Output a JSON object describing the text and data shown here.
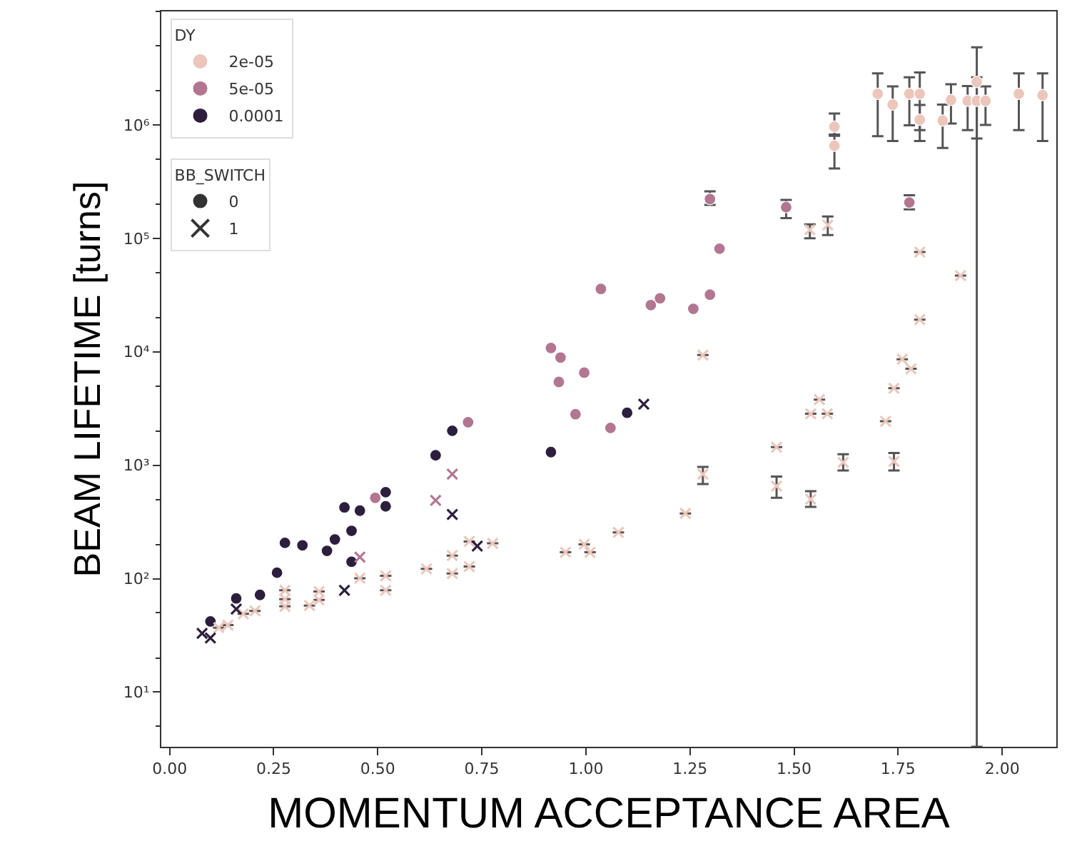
{
  "chart_data": {
    "type": "scatter",
    "xlabel": "MOMENTUM ACCEPTANCE AREA",
    "ylabel": "BEAM LIFETIME [turns]",
    "log": "y",
    "legend": "top left",
    "legend_title": [
      "DY",
      "BB_SWITCH"
    ],
    "xlim": [
      -0.02,
      2.13
    ],
    "xticks": [
      {
        "value": 0,
        "label": "0.00"
      },
      {
        "value": 0.25,
        "label": "0.25"
      },
      {
        "value": 0.5,
        "label": "0.50"
      },
      {
        "value": 0.75,
        "label": "0.75"
      },
      {
        "value": 1,
        "label": "1.00"
      },
      {
        "value": 1.25,
        "label": "1.25"
      },
      {
        "value": 1.5,
        "label": "1.50"
      },
      {
        "value": 1.75,
        "label": "1.75"
      },
      {
        "value": 2,
        "label": "2.00"
      }
    ],
    "ylim": [
      3.3,
      10000000
    ],
    "yticks": [
      {
        "value": 10,
        "label": "10¹"
      },
      {
        "value": 100,
        "label": "10²"
      },
      {
        "value": 1000,
        "label": "10³"
      },
      {
        "value": 10000,
        "label": "10⁴"
      },
      {
        "value": 100000,
        "label": "10⁵"
      },
      {
        "value": 1000000,
        "label": "10⁶"
      }
    ],
    "series": [
      {
        "name": "2e-05",
        "color": "#ecc6bb",
        "marker": "circle",
        "x": [
          1.597,
          1.597,
          1.701,
          1.737,
          1.777,
          1.802,
          1.802,
          1.857,
          1.877,
          1.917,
          1.939,
          1.939,
          1.96,
          2.04,
          2.097
        ],
        "values": [
          964000,
          655000,
          1880000,
          1510000,
          1880000,
          1880000,
          1110000,
          1090000,
          1660000,
          1630000,
          2390000,
          1630000,
          1630000,
          1880000,
          1830000
        ],
        "errors": [
          [
            820000,
            1260000
          ],
          [
            413000,
            800000
          ],
          [
            794000,
            2850000
          ],
          [
            720000,
            2180000
          ],
          [
            990000,
            2630000
          ],
          [
            720000,
            2900000
          ],
          [
            900000,
            1500000
          ],
          [
            625000,
            1510000
          ],
          [
            1030000,
            2280000
          ],
          [
            900000,
            2200000
          ],
          [
            3.3,
            4830000
          ],
          [
            757000,
            2630000
          ],
          [
            1000000,
            2180000
          ],
          [
            900000,
            2850000
          ],
          [
            720000,
            2850000
          ]
        ]
      },
      {
        "name": "5e-05",
        "color": "#b27691",
        "marker": "circle",
        "x": [
          0.494,
          0.717,
          0.975,
          1.059,
          1.036,
          0.916,
          0.939,
          0.935,
          0.996,
          1.156,
          1.178,
          1.258,
          1.298,
          1.321,
          1.298,
          1.481,
          1.777
        ],
        "values": [
          516,
          2393,
          2818,
          2133,
          35800,
          10800,
          8900,
          5420,
          6550,
          25800,
          29600,
          23900,
          31900,
          81000,
          222000,
          188000,
          207000
        ],
        "errors": [
          null,
          null,
          null,
          null,
          null,
          null,
          null,
          null,
          null,
          null,
          null,
          null,
          null,
          null,
          [
            197000,
            260000
          ],
          [
            151000,
            218000
          ],
          [
            180000,
            240000
          ]
        ]
      },
      {
        "name": "0.0001",
        "color": "#2d1e3e",
        "marker": "circle",
        "x": [
          0.098,
          0.16,
          0.217,
          0.258,
          0.277,
          0.319,
          0.378,
          0.397,
          0.42,
          0.437,
          0.457,
          0.437,
          0.519,
          0.519,
          0.639,
          0.679,
          0.916,
          1.099
        ],
        "values": [
          42,
          67,
          72,
          113,
          207,
          197,
          176,
          222,
          425,
          264,
          398,
          141,
          579,
          434,
          1223,
          2013,
          1306,
          2900
        ]
      },
      {
        "color": "#ecc6bb",
        "marker": "cross",
        "x": [
          0.118,
          0.14,
          0.177,
          0.205,
          0.277,
          0.277,
          0.277,
          0.336,
          0.359,
          0.359,
          0.457,
          0.519,
          0.519,
          0.617,
          0.679,
          0.679,
          0.72,
          0.72,
          0.776,
          0.951,
          0.996,
          1.01,
          1.078,
          1.239,
          1.281,
          1.458,
          1.458,
          1.54,
          1.618,
          1.74,
          1.54,
          1.58,
          1.72,
          1.561,
          1.74,
          1.76,
          1.781,
          1.802,
          1.9,
          1.802,
          1.281,
          1.538,
          1.581
        ],
        "values": [
          37,
          39,
          49,
          52,
          79,
          66,
          57,
          58,
          77,
          65,
          101,
          106,
          79,
          122,
          160,
          111,
          128,
          213,
          205,
          171,
          201,
          171,
          256,
          376,
          834,
          1443,
          655,
          501,
          1059,
          1081,
          2840,
          2840,
          2440,
          3790,
          4770,
          8590,
          7080,
          19200,
          46900,
          75700,
          9360,
          119000,
          131000
        ],
        "errors": [
          null,
          null,
          null,
          null,
          null,
          null,
          null,
          null,
          null,
          null,
          null,
          null,
          null,
          null,
          null,
          null,
          null,
          null,
          null,
          null,
          null,
          null,
          null,
          null,
          [
            683,
            968
          ],
          null,
          [
            516,
            794
          ],
          [
            430,
            590
          ],
          [
            900,
            1250
          ],
          [
            900,
            1280
          ],
          null,
          null,
          null,
          null,
          null,
          null,
          null,
          null,
          null,
          null,
          null,
          [
            100000,
            133000
          ],
          [
            107000,
            156000
          ]
        ]
      },
      {
        "color": "#b27691",
        "marker": "cross",
        "x": [
          0.679,
          0.639,
          0.457
        ],
        "values": [
          834,
          490,
          155
        ]
      },
      {
        "color": "#2d1e3e",
        "marker": "cross",
        "x": [
          0.078,
          0.098,
          0.16,
          0.42,
          0.679,
          0.739,
          1.139
        ],
        "values": [
          33,
          30,
          54,
          79,
          368,
          194,
          3450
        ]
      },
      {
        "name": "0",
        "color": "#333333",
        "marker": "circle"
      },
      {
        "name": "1",
        "color": "#333333",
        "marker": "cross"
      }
    ]
  }
}
